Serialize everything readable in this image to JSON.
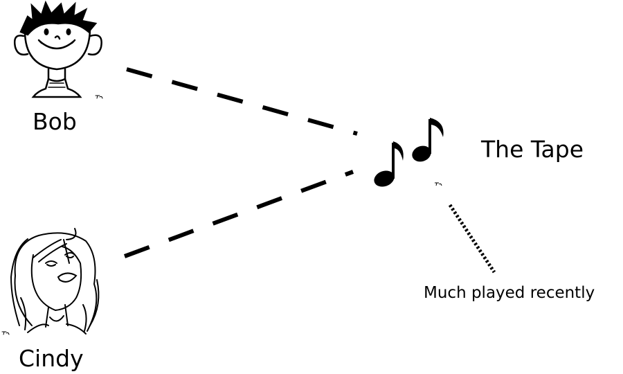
{
  "nodes": {
    "bob": {
      "label": "Bob",
      "icon": "boy-face-icon"
    },
    "cindy": {
      "label": "Cindy",
      "icon": "girl-face-icon"
    },
    "tape": {
      "label": "The Tape",
      "icon": "music-notes-icon"
    }
  },
  "edges": [
    {
      "from": "Bob",
      "to": "The Tape",
      "style": "dashed"
    },
    {
      "from": "Cindy",
      "to": "The Tape",
      "style": "dashed"
    }
  ],
  "annotation": {
    "text": "Much played recently",
    "style": "dotted",
    "target": "The Tape"
  },
  "colors": {
    "ink": "#000000",
    "background": "#ffffff"
  }
}
